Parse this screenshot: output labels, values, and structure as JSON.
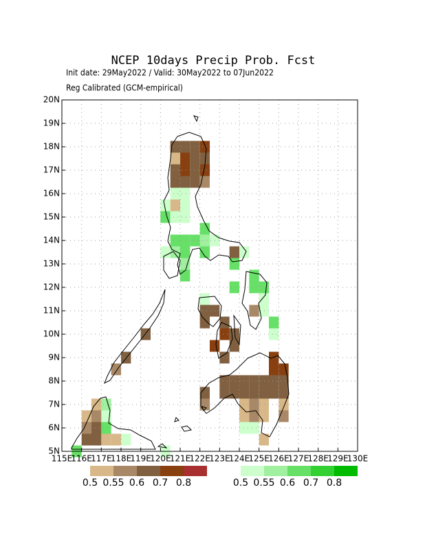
{
  "title": "NCEP 10days Precip Prob. Fcst",
  "init_line": "Init date: 29May2022 / Valid: 30May2022 to 07Jun2022",
  "subtitle": "Reg Calibrated (GCM-empirical)",
  "map": {
    "xlim": [
      115,
      130
    ],
    "ylim": [
      5,
      20
    ],
    "xticks": [
      {
        "value": 115,
        "label": "115E"
      },
      {
        "value": 116,
        "label": "116E"
      },
      {
        "value": 117,
        "label": "117E"
      },
      {
        "value": 118,
        "label": "118E"
      },
      {
        "value": 119,
        "label": "119E"
      },
      {
        "value": 120,
        "label": "120E"
      },
      {
        "value": 121,
        "label": "121E"
      },
      {
        "value": 122,
        "label": "122E"
      },
      {
        "value": 123,
        "label": "123E"
      },
      {
        "value": 124,
        "label": "124E"
      },
      {
        "value": 125,
        "label": "125E"
      },
      {
        "value": 126,
        "label": "126E"
      },
      {
        "value": 127,
        "label": "127E"
      },
      {
        "value": 128,
        "label": "128E"
      },
      {
        "value": 129,
        "label": "129E"
      },
      {
        "value": 130,
        "label": "130E"
      }
    ],
    "yticks": [
      {
        "value": 5,
        "label": "5N"
      },
      {
        "value": 6,
        "label": "6N"
      },
      {
        "value": 7,
        "label": "7N"
      },
      {
        "value": 8,
        "label": "8N"
      },
      {
        "value": 9,
        "label": "9N"
      },
      {
        "value": 10,
        "label": "10N"
      },
      {
        "value": 11,
        "label": "11N"
      },
      {
        "value": 12,
        "label": "12N"
      },
      {
        "value": 13,
        "label": "13N"
      },
      {
        "value": 14,
        "label": "14N"
      },
      {
        "value": 15,
        "label": "15N"
      },
      {
        "value": 16,
        "label": "16N"
      },
      {
        "value": 17,
        "label": "17N"
      },
      {
        "value": 18,
        "label": "18N"
      },
      {
        "value": 19,
        "label": "19N"
      },
      {
        "value": 20,
        "label": "20N"
      }
    ],
    "grid": true,
    "cell_size": 0.5,
    "dry_cells": [
      [
        120.75,
        18.0,
        0.6
      ],
      [
        121.25,
        18.0,
        0.6
      ],
      [
        121.75,
        18.0,
        0.6
      ],
      [
        122.25,
        18.0,
        0.7
      ],
      [
        120.75,
        17.5,
        0.5
      ],
      [
        121.25,
        17.5,
        0.7
      ],
      [
        121.75,
        17.5,
        0.6
      ],
      [
        122.25,
        17.5,
        0.6
      ],
      [
        120.75,
        17.0,
        0.6
      ],
      [
        121.25,
        17.0,
        0.7
      ],
      [
        121.75,
        17.0,
        0.6
      ],
      [
        122.25,
        17.0,
        0.7
      ],
      [
        120.75,
        16.5,
        0.6
      ],
      [
        121.25,
        16.5,
        0.6
      ],
      [
        121.75,
        16.5,
        0.6
      ],
      [
        122.25,
        16.5,
        0.55
      ],
      [
        120.75,
        15.5,
        0.5
      ],
      [
        123.75,
        13.5,
        0.6
      ],
      [
        122.25,
        11.0,
        0.6
      ],
      [
        122.75,
        11.0,
        0.6
      ],
      [
        122.25,
        10.5,
        0.6
      ],
      [
        123.25,
        10.5,
        0.6
      ],
      [
        124.75,
        11.0,
        0.55
      ],
      [
        123.25,
        10.0,
        0.7
      ],
      [
        123.75,
        10.0,
        0.6
      ],
      [
        122.75,
        9.5,
        0.7
      ],
      [
        123.75,
        9.5,
        0.6
      ],
      [
        123.25,
        9.0,
        0.6
      ],
      [
        119.25,
        10.0,
        0.6
      ],
      [
        118.25,
        9.0,
        0.6
      ],
      [
        117.75,
        8.5,
        0.55
      ],
      [
        125.75,
        9.0,
        0.7
      ],
      [
        125.75,
        8.5,
        0.7
      ],
      [
        126.25,
        8.5,
        0.7
      ],
      [
        123.25,
        8.0,
        0.6
      ],
      [
        123.75,
        8.0,
        0.6
      ],
      [
        124.25,
        8.0,
        0.6
      ],
      [
        124.75,
        8.0,
        0.6
      ],
      [
        125.25,
        8.0,
        0.6
      ],
      [
        125.75,
        8.0,
        0.6
      ],
      [
        126.25,
        8.0,
        0.6
      ],
      [
        122.25,
        7.5,
        0.6
      ],
      [
        123.25,
        7.5,
        0.6
      ],
      [
        123.75,
        7.5,
        0.6
      ],
      [
        124.25,
        7.5,
        0.6
      ],
      [
        124.75,
        7.5,
        0.6
      ],
      [
        125.25,
        7.5,
        0.6
      ],
      [
        125.75,
        7.5,
        0.6
      ],
      [
        126.25,
        7.5,
        0.6
      ],
      [
        122.25,
        7.0,
        0.55
      ],
      [
        124.25,
        7.0,
        0.5
      ],
      [
        124.75,
        7.0,
        0.55
      ],
      [
        125.25,
        7.0,
        0.5
      ],
      [
        126.25,
        7.0,
        0.5
      ],
      [
        124.25,
        6.5,
        0.5
      ],
      [
        124.75,
        6.5,
        0.55
      ],
      [
        125.25,
        6.5,
        0.5
      ],
      [
        126.25,
        6.5,
        0.55
      ],
      [
        125.25,
        5.5,
        0.5
      ],
      [
        116.75,
        7.0,
        0.5
      ],
      [
        116.25,
        6.5,
        0.5
      ],
      [
        116.75,
        6.5,
        0.55
      ],
      [
        116.25,
        6.0,
        0.55
      ],
      [
        116.75,
        6.0,
        0.6
      ],
      [
        116.25,
        5.5,
        0.6
      ],
      [
        116.75,
        5.5,
        0.6
      ],
      [
        117.25,
        5.5,
        0.5
      ],
      [
        117.75,
        5.5,
        0.5
      ]
    ],
    "wet_cells": [
      [
        120.75,
        16.0,
        0.5
      ],
      [
        121.25,
        16.0,
        0.5
      ],
      [
        120.25,
        15.5,
        0.5
      ],
      [
        121.25,
        15.5,
        0.5
      ],
      [
        120.25,
        15.0,
        0.6
      ],
      [
        120.75,
        15.0,
        0.5
      ],
      [
        121.25,
        15.0,
        0.5
      ],
      [
        122.25,
        14.5,
        0.6
      ],
      [
        120.75,
        14.0,
        0.6
      ],
      [
        121.25,
        14.0,
        0.6
      ],
      [
        121.75,
        14.0,
        0.6
      ],
      [
        122.25,
        14.0,
        0.55
      ],
      [
        122.75,
        14.0,
        0.5
      ],
      [
        120.25,
        13.5,
        0.5
      ],
      [
        120.75,
        13.5,
        0.55
      ],
      [
        121.25,
        13.5,
        0.6
      ],
      [
        122.25,
        13.5,
        0.6
      ],
      [
        124.25,
        13.5,
        0.5
      ],
      [
        121.25,
        13.0,
        0.55
      ],
      [
        121.25,
        12.5,
        0.6
      ],
      [
        123.75,
        13.0,
        0.6
      ],
      [
        123.75,
        12.0,
        0.6
      ],
      [
        124.75,
        12.5,
        0.6
      ],
      [
        124.75,
        12.0,
        0.6
      ],
      [
        125.25,
        12.0,
        0.6
      ],
      [
        125.25,
        11.5,
        0.5
      ],
      [
        122.25,
        11.5,
        0.5
      ],
      [
        125.25,
        11.0,
        0.5
      ],
      [
        125.75,
        10.5,
        0.6
      ],
      [
        125.75,
        10.0,
        0.5
      ],
      [
        124.25,
        6.0,
        0.5
      ],
      [
        124.75,
        6.0,
        0.5
      ],
      [
        117.25,
        6.5,
        0.5
      ],
      [
        117.25,
        6.0,
        0.6
      ],
      [
        117.25,
        7.0,
        0.55
      ],
      [
        118.25,
        5.5,
        0.5
      ],
      [
        115.75,
        5.0,
        0.6
      ],
      [
        120.25,
        5.0,
        0.5
      ]
    ]
  },
  "colorbars": [
    {
      "levels": [
        0.5,
        0.55,
        0.6,
        0.7,
        0.8
      ],
      "colors": [
        "#d8b888",
        "#a88866",
        "#806040",
        "#884010",
        "#a83030"
      ]
    },
    {
      "levels": [
        0.5,
        0.55,
        0.6,
        0.7,
        0.8
      ],
      "colors": [
        "#ccffcc",
        "#a0f0a0",
        "#66e066",
        "#33d033",
        "#00bb00"
      ]
    }
  ]
}
